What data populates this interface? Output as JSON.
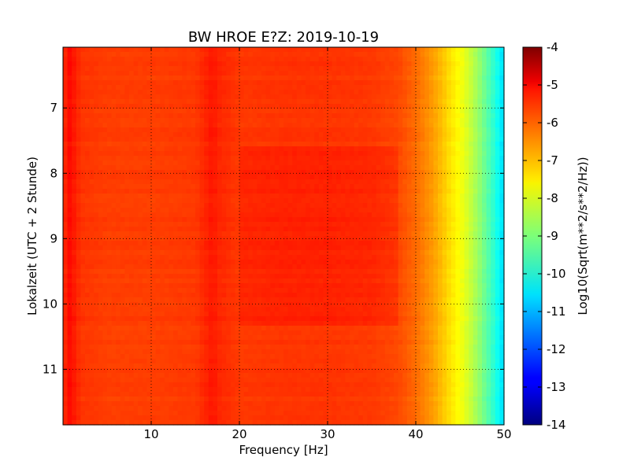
{
  "chart_data": {
    "type": "heatmap",
    "title": "BW HROE E?Z: 2019-10-19",
    "xlabel": "Frequency [Hz]",
    "ylabel": "Lokalzeit (UTC + 2 Stunde)",
    "colorbar_label": "Log10(Sqrt(m**2/s**2/Hz))",
    "colormap": "jet",
    "grid": true,
    "xlim": [
      0,
      50
    ],
    "ylim": [
      11.85,
      6.07
    ],
    "y_inverted": true,
    "clim": [
      -14,
      -4
    ],
    "x_ticks": [
      "10",
      "20",
      "30",
      "40",
      "50"
    ],
    "y_ticks": [
      "7",
      "8",
      "9",
      "10",
      "11"
    ],
    "colorbar_ticks": [
      "-4",
      "-5",
      "-6",
      "-7",
      "-8",
      "-9",
      "-10",
      "-11",
      "-12",
      "-13",
      "-14"
    ],
    "x_tick_values": [
      10,
      20,
      30,
      40,
      50
    ],
    "y_tick_values": [
      7,
      8,
      9,
      10,
      11
    ],
    "colorbar_tick_values": [
      -4,
      -5,
      -6,
      -7,
      -8,
      -9,
      -10,
      -11,
      -12,
      -13,
      -14
    ],
    "freq_profile": {
      "frequency_hz": [
        0,
        0.5,
        1,
        2,
        5,
        10,
        15,
        16.5,
        17,
        17.5,
        20,
        25,
        30,
        35,
        38,
        40,
        42,
        43,
        44,
        45,
        46,
        47,
        48,
        49,
        49.5,
        50
      ],
      "log10_amplitude": [
        -5.9,
        -5.3,
        -5.4,
        -5.75,
        -5.85,
        -5.85,
        -5.8,
        -5.55,
        -5.45,
        -5.6,
        -5.8,
        -5.75,
        -5.75,
        -5.8,
        -5.95,
        -6.3,
        -6.8,
        -7.15,
        -7.5,
        -7.8,
        -8.2,
        -8.7,
        -9.3,
        -9.9,
        -10.3,
        -10.6
      ]
    }
  }
}
